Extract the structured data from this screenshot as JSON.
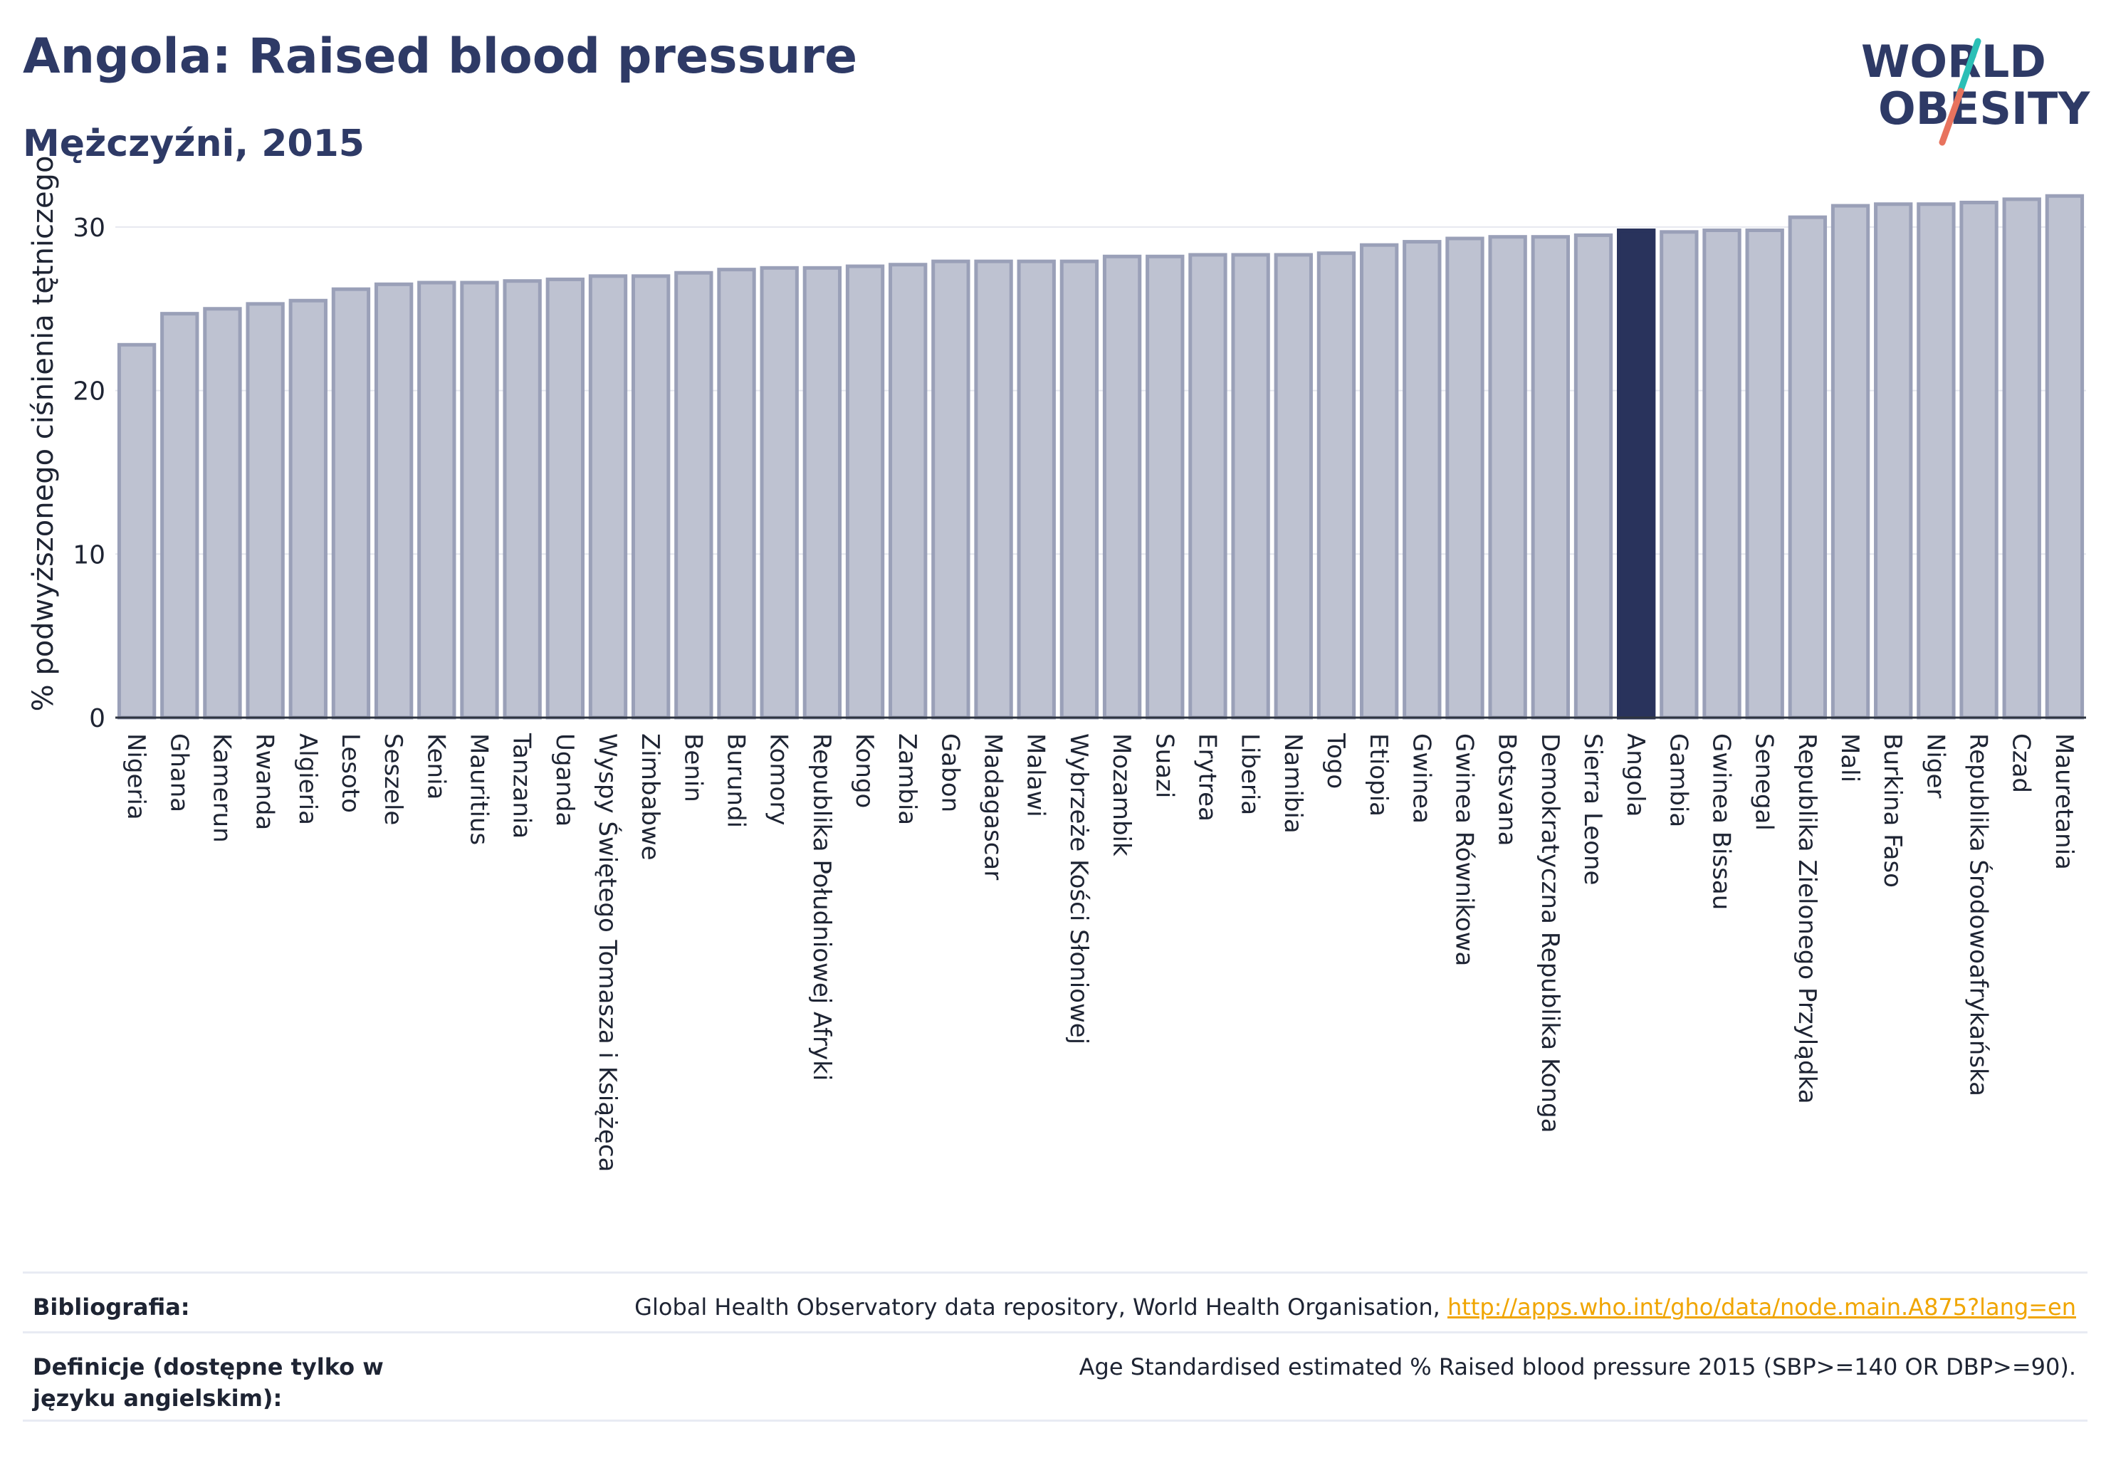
{
  "header": {
    "title": "Angola: Raised blood pressure",
    "subtitle": "Mężczyźni, 2015"
  },
  "logo": {
    "line1": "WORLD",
    "line2": "OBESITY",
    "accent_teal": "#2bbfb6",
    "accent_coral": "#e8735e",
    "text_color": "#2e3a66"
  },
  "chart_data": {
    "type": "bar",
    "ylabel": "% podwyższonego ciśnienia tętniczego",
    "ylim": [
      0,
      33
    ],
    "yticks": [
      0,
      10,
      20,
      30
    ],
    "highlight": "Angola",
    "bar_color": "#bec2d1",
    "bar_stroke": "#9aa0b8",
    "highlight_color": "#29335c",
    "grid": true,
    "categories": [
      "Nigeria",
      "Ghana",
      "Kamerun",
      "Rwanda",
      "Algieria",
      "Lesoto",
      "Seszele",
      "Kenia",
      "Mauritius",
      "Tanzania",
      "Uganda",
      "Wyspy Świętego Tomasza i Książęca",
      "Zimbabwe",
      "Benin",
      "Burundi",
      "Komory",
      "Republika Południowej Afryki",
      "Kongo",
      "Zambia",
      "Gabon",
      "Madagascar",
      "Malawi",
      "Wybrzeże Kości Słoniowej",
      "Mozambik",
      "Suazi",
      "Erytrea",
      "Liberia",
      "Namibia",
      "Togo",
      "Etiopia",
      "Gwinea",
      "Gwinea Równikowa",
      "Botsvana",
      "Demokratyczna Republika Konga",
      "Sierra Leone",
      "Angola",
      "Gambia",
      "Gwinea Bissau",
      "Senegal",
      "Republika Zielonego Przylądka",
      "Mali",
      "Burkina Faso",
      "Niger",
      "Republika Środowoafrykańska",
      "Czad",
      "Mauretania"
    ],
    "values": [
      22.8,
      24.7,
      25.0,
      25.3,
      25.5,
      26.2,
      26.5,
      26.6,
      26.6,
      26.7,
      26.8,
      27.0,
      27.0,
      27.2,
      27.4,
      27.5,
      27.5,
      27.6,
      27.7,
      27.9,
      27.9,
      27.9,
      27.9,
      28.2,
      28.2,
      28.3,
      28.3,
      28.3,
      28.4,
      28.9,
      29.1,
      29.3,
      29.4,
      29.4,
      29.5,
      29.8,
      29.7,
      29.8,
      29.8,
      30.6,
      31.3,
      31.4,
      31.4,
      31.5,
      31.7,
      31.9
    ]
  },
  "footer": {
    "bibliography_label": "Bibliografia:",
    "bibliography_text": "Global Health Observatory data repository, World Health Organisation,",
    "bibliography_link": "http://apps.who.int/gho/data/node.main.A875?lang=en",
    "definition_label": "Definicje (dostępne tylko w języku angielskim):",
    "definition_text": "Age Standardised estimated % Raised blood pressure 2015 (SBP>=140 OR DBP>=90)."
  }
}
